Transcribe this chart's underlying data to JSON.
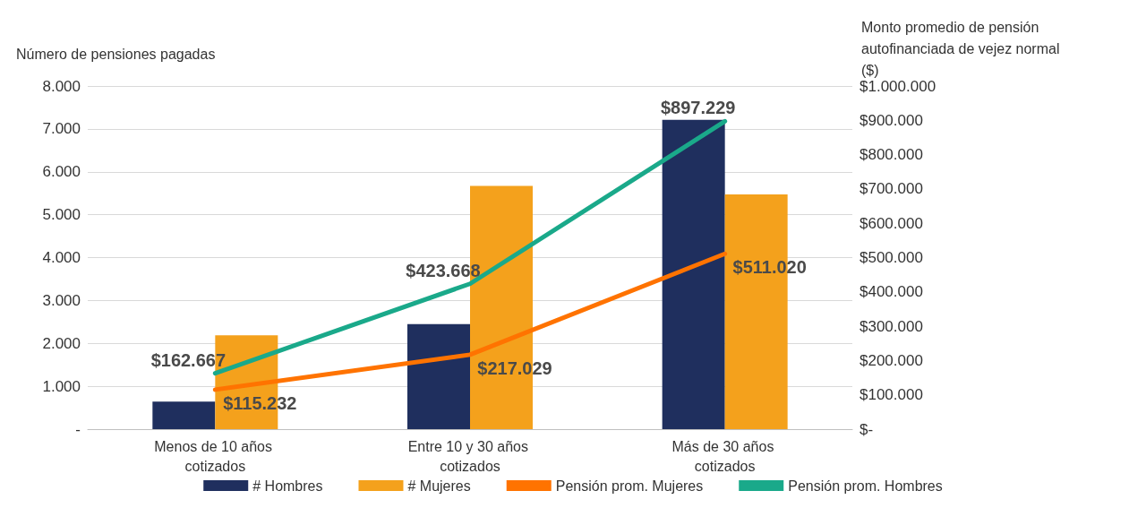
{
  "chart_data": {
    "type": "bar",
    "categories": [
      "Menos de 10 años cotizados",
      "Entre 10 y 30 años cotizados",
      "Más de 30 años cotizados"
    ],
    "ylabel": "Número de pensiones pagadas",
    "y2label": "Monto promedio de pensión autofinanciada de vejez normal ($)",
    "series": [
      {
        "name": "# Hombres",
        "color": "#1f2f5e",
        "values": [
          640,
          2450,
          7210
        ]
      },
      {
        "name": "# Mujeres",
        "color": "#f4a11c",
        "values": [
          2190,
          5670,
          5470
        ]
      },
      {
        "name": "Pensión prom. Mujeres",
        "type": "line",
        "axis": "y2",
        "color": "#ff7300",
        "values": [
          115232,
          217029,
          511020
        ],
        "value_labels": [
          "$115.232",
          "$217.029",
          "$511.020"
        ]
      },
      {
        "name": "Pensión prom. Hombres",
        "type": "line",
        "axis": "y2",
        "color": "#1aa98a",
        "values": [
          162667,
          423668,
          897229
        ],
        "value_labels": [
          "$162.667",
          "$423.668",
          "$897.229"
        ]
      }
    ],
    "ylim": [
      0,
      8000
    ],
    "yticks": [
      {
        "value": 0,
        "label": "-"
      },
      {
        "value": 1000,
        "label": "1.000"
      },
      {
        "value": 2000,
        "label": "2.000"
      },
      {
        "value": 3000,
        "label": "3.000"
      },
      {
        "value": 4000,
        "label": "4.000"
      },
      {
        "value": 5000,
        "label": "5.000"
      },
      {
        "value": 6000,
        "label": "6.000"
      },
      {
        "value": 7000,
        "label": "7.000"
      },
      {
        "value": 8000,
        "label": "8.000"
      }
    ],
    "y2lim": [
      0,
      1000000
    ],
    "y2ticks": [
      {
        "value": 0,
        "label": "$-"
      },
      {
        "value": 100000,
        "label": "$100.000"
      },
      {
        "value": 200000,
        "label": "$200.000"
      },
      {
        "value": 300000,
        "label": "$300.000"
      },
      {
        "value": 400000,
        "label": "$400.000"
      },
      {
        "value": 500000,
        "label": "$500.000"
      },
      {
        "value": 600000,
        "label": "$600.000"
      },
      {
        "value": 700000,
        "label": "$700.000"
      },
      {
        "value": 800000,
        "label": "$800.000"
      },
      {
        "value": 900000,
        "label": "$900.000"
      },
      {
        "value": 1000000,
        "label": "$1.000.000"
      }
    ],
    "grid": "y",
    "legend": "bottom",
    "marker": "none",
    "line_style": "solid"
  }
}
